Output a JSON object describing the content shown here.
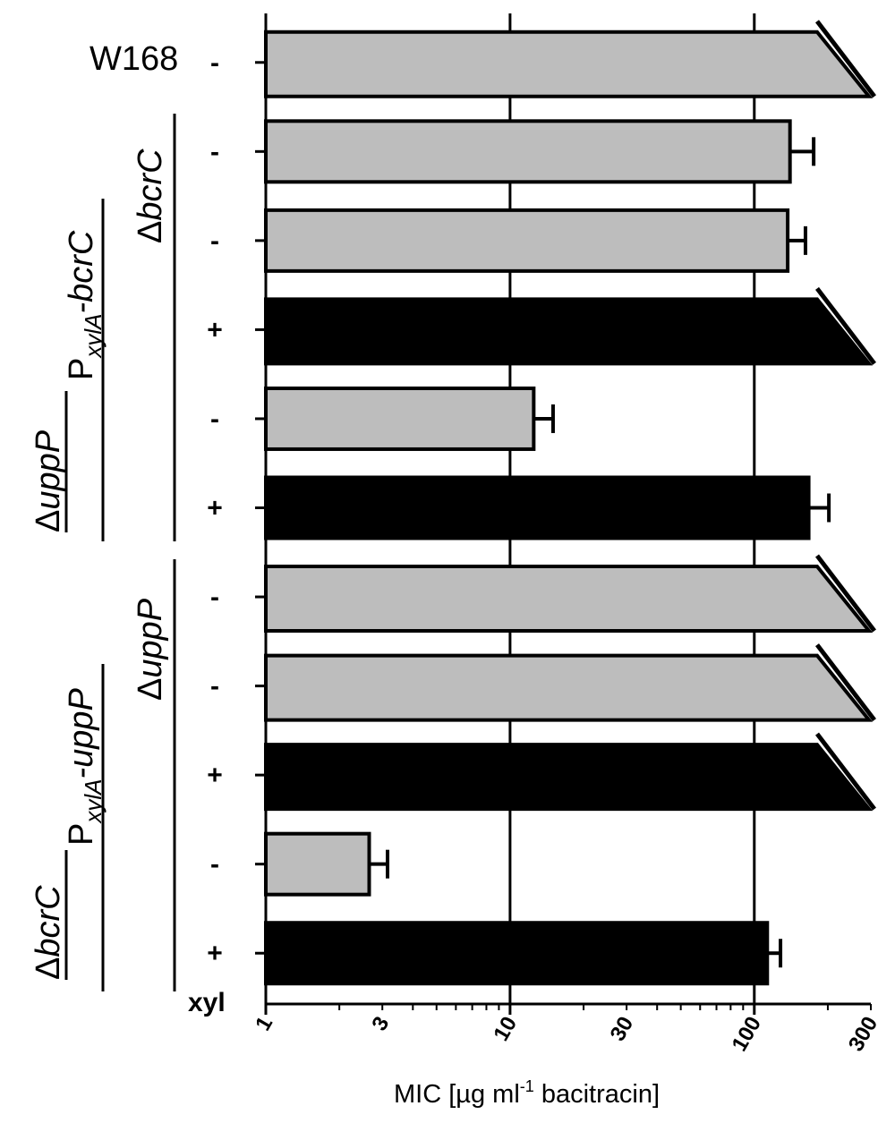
{
  "chart_data": {
    "type": "bar",
    "orientation": "horizontal",
    "xscale": "log",
    "xlim": [
      1,
      300
    ],
    "xticks": [
      "1",
      "3",
      "10",
      "30",
      "100",
      "300"
    ],
    "gridlines_at": [
      10,
      100
    ],
    "xlabel_prefix": "MIC [µg ml",
    "xlabel_sup": "-1",
    "xlabel_suffix": " bacitracin]",
    "xyl_label": "xyl",
    "top_strain_label": "W168",
    "colors": {
      "no_xylose": "#bdbdbd",
      "xylose": "#000000"
    },
    "bars": [
      {
        "xyl": "-",
        "value": 300,
        "error": 0,
        "truncated": true,
        "color": "#bdbdbd"
      },
      {
        "xyl": "-",
        "value": 140,
        "error": 35,
        "truncated": false,
        "color": "#bdbdbd"
      },
      {
        "xyl": "-",
        "value": 137,
        "error": 25,
        "truncated": false,
        "color": "#bdbdbd"
      },
      {
        "xyl": "+",
        "value": 300,
        "error": 0,
        "truncated": true,
        "color": "#000000"
      },
      {
        "xyl": "-",
        "value": 12.5,
        "error": 2.5,
        "truncated": false,
        "color": "#bdbdbd"
      },
      {
        "xyl": "+",
        "value": 167,
        "error": 35,
        "truncated": false,
        "color": "#000000"
      },
      {
        "xyl": "-",
        "value": 300,
        "error": 0,
        "truncated": true,
        "color": "#bdbdbd"
      },
      {
        "xyl": "-",
        "value": 300,
        "error": 0,
        "truncated": true,
        "color": "#bdbdbd"
      },
      {
        "xyl": "+",
        "value": 300,
        "error": 0,
        "truncated": true,
        "color": "#000000"
      },
      {
        "xyl": "-",
        "value": 2.65,
        "error": 0.5,
        "truncated": false,
        "color": "#bdbdbd"
      },
      {
        "xyl": "+",
        "value": 113,
        "error": 15,
        "truncated": false,
        "color": "#000000"
      }
    ],
    "group_labels": {
      "g1_inner": {
        "delta": "Δ",
        "name": "bcrC"
      },
      "g1_promoter": {
        "P": "P",
        "sub": "xylA",
        "suffix": "-bcrC"
      },
      "g1_outer": {
        "delta": "Δ",
        "name": "uppP"
      },
      "g2_inner": {
        "delta": "Δ",
        "name": "uppP"
      },
      "g2_promoter": {
        "P": "P",
        "sub": "xylA",
        "suffix": "-uppP"
      },
      "g2_outer": {
        "delta": "Δ",
        "name": "bcrC"
      }
    }
  }
}
